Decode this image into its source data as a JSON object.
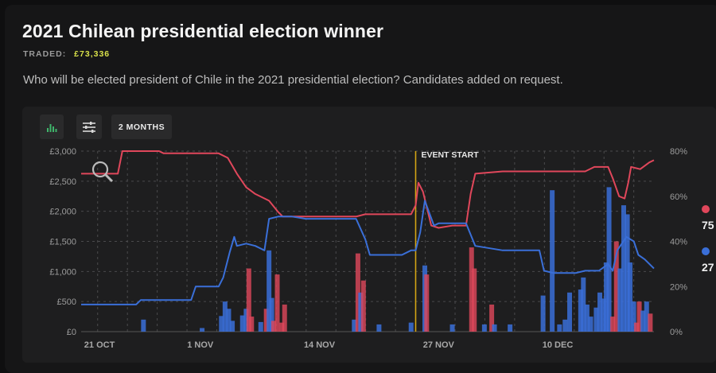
{
  "header": {
    "title": "2021 Chilean presidential election winner",
    "traded_label": "TRADED:",
    "traded_amount": "£73,336",
    "description": "Who will be elected president of Chile in the 2021 presidential election? Candidates added on request."
  },
  "toolbar": {
    "chart_icon": "bar-chart-icon",
    "filter_icon": "sliders-icon",
    "range_label": "2 MONTHS"
  },
  "legend": [
    {
      "color": "#e0475b",
      "value": "75"
    },
    {
      "color": "#3a6fd8",
      "value": "27"
    }
  ],
  "colors": {
    "red": "#e0475b",
    "blue": "#3a6fd8",
    "event": "#d4a514",
    "grid": "#4a4a4c"
  },
  "chart_data": {
    "type": "line",
    "title": "",
    "event_label": "EVENT START",
    "event_x": 34.5,
    "x_ticks": [
      {
        "x": 0,
        "label": "21 OCT"
      },
      {
        "x": 11,
        "label": "1 NOV"
      },
      {
        "x": 24,
        "label": "14 NOV"
      },
      {
        "x": 37,
        "label": "27 NOV"
      },
      {
        "x": 50,
        "label": "10 DEC"
      }
    ],
    "xlim": [
      -2,
      60.5
    ],
    "y_left": {
      "ticks": [
        "£0",
        "£500",
        "£1,000",
        "£1,500",
        "£2,000",
        "£2,500",
        "£3,000"
      ],
      "lim": [
        0,
        3000
      ]
    },
    "y_right": {
      "ticks": [
        "0%",
        "20%",
        "40%",
        "60%",
        "80%"
      ],
      "lim": [
        0,
        80
      ]
    },
    "series": [
      {
        "color": "red",
        "points": [
          [
            -2,
            70
          ],
          [
            2,
            70
          ],
          [
            2.5,
            80
          ],
          [
            6.5,
            80
          ],
          [
            7,
            79
          ],
          [
            13,
            79
          ],
          [
            14,
            77
          ],
          [
            15,
            70
          ],
          [
            16,
            64
          ],
          [
            17,
            61
          ],
          [
            18.5,
            58
          ],
          [
            19.5,
            53
          ],
          [
            20,
            51
          ],
          [
            28,
            51
          ],
          [
            29,
            52
          ],
          [
            34,
            52
          ],
          [
            34.5,
            56
          ],
          [
            34.8,
            66
          ],
          [
            35.3,
            62
          ],
          [
            36.2,
            47
          ],
          [
            37,
            46
          ],
          [
            38.5,
            47
          ],
          [
            40,
            47
          ],
          [
            40.5,
            61
          ],
          [
            41,
            70
          ],
          [
            44,
            71
          ],
          [
            52,
            71
          ],
          [
            53,
            71
          ],
          [
            54,
            73
          ],
          [
            55.5,
            73
          ],
          [
            56,
            68
          ],
          [
            56.7,
            60
          ],
          [
            57.3,
            59
          ],
          [
            57.7,
            66
          ],
          [
            58,
            73
          ],
          [
            59,
            72
          ],
          [
            60,
            75
          ],
          [
            60.5,
            76
          ]
        ]
      },
      {
        "color": "blue",
        "points": [
          [
            -2,
            12
          ],
          [
            4,
            12
          ],
          [
            4.5,
            14
          ],
          [
            10,
            14
          ],
          [
            10.5,
            20
          ],
          [
            13,
            20
          ],
          [
            13.5,
            24
          ],
          [
            14.2,
            35
          ],
          [
            14.7,
            42
          ],
          [
            15,
            38
          ],
          [
            16,
            39
          ],
          [
            17,
            38
          ],
          [
            18,
            36
          ],
          [
            18.5,
            50
          ],
          [
            19.5,
            51
          ],
          [
            21,
            51
          ],
          [
            22.5,
            50
          ],
          [
            28,
            50
          ],
          [
            29,
            41
          ],
          [
            29.5,
            34
          ],
          [
            33,
            34
          ],
          [
            34,
            36
          ],
          [
            34.5,
            36
          ],
          [
            35,
            44
          ],
          [
            35.5,
            58
          ],
          [
            36.5,
            47
          ],
          [
            37,
            48
          ],
          [
            40,
            48
          ],
          [
            41,
            38
          ],
          [
            44,
            36
          ],
          [
            48,
            36
          ],
          [
            48.5,
            27
          ],
          [
            49.5,
            26
          ],
          [
            52,
            26
          ],
          [
            53,
            27
          ],
          [
            54.5,
            27
          ],
          [
            55.5,
            30
          ],
          [
            56,
            27
          ],
          [
            56.5,
            36
          ],
          [
            57.5,
            42
          ],
          [
            58.3,
            40
          ],
          [
            58.8,
            34
          ],
          [
            59.5,
            32
          ],
          [
            60.5,
            28
          ]
        ]
      }
    ],
    "volume_bars": [
      {
        "x": 4.8,
        "v": 200,
        "c": "blue"
      },
      {
        "x": 11.2,
        "v": 60,
        "c": "blue"
      },
      {
        "x": 13.3,
        "v": 260,
        "c": "blue"
      },
      {
        "x": 13.7,
        "v": 500,
        "c": "blue"
      },
      {
        "x": 14.1,
        "v": 380,
        "c": "blue"
      },
      {
        "x": 14.5,
        "v": 180,
        "c": "blue"
      },
      {
        "x": 15.6,
        "v": 270,
        "c": "blue"
      },
      {
        "x": 16,
        "v": 380,
        "c": "blue"
      },
      {
        "x": 16.3,
        "v": 1050,
        "c": "red"
      },
      {
        "x": 16.6,
        "v": 250,
        "c": "red"
      },
      {
        "x": 17.6,
        "v": 160,
        "c": "blue"
      },
      {
        "x": 18.2,
        "v": 380,
        "c": "red"
      },
      {
        "x": 18.5,
        "v": 1350,
        "c": "blue"
      },
      {
        "x": 18.8,
        "v": 560,
        "c": "blue"
      },
      {
        "x": 19,
        "v": 180,
        "c": "red"
      },
      {
        "x": 19.4,
        "v": 950,
        "c": "red"
      },
      {
        "x": 19.9,
        "v": 150,
        "c": "red"
      },
      {
        "x": 20.2,
        "v": 450,
        "c": "red"
      },
      {
        "x": 27.8,
        "v": 200,
        "c": "blue"
      },
      {
        "x": 28.2,
        "v": 1300,
        "c": "red"
      },
      {
        "x": 28.5,
        "v": 650,
        "c": "blue"
      },
      {
        "x": 28.8,
        "v": 850,
        "c": "red"
      },
      {
        "x": 30.5,
        "v": 120,
        "c": "blue"
      },
      {
        "x": 34,
        "v": 150,
        "c": "blue"
      },
      {
        "x": 35.5,
        "v": 1100,
        "c": "blue"
      },
      {
        "x": 35.7,
        "v": 950,
        "c": "red"
      },
      {
        "x": 38.5,
        "v": 120,
        "c": "blue"
      },
      {
        "x": 40.6,
        "v": 1400,
        "c": "red"
      },
      {
        "x": 40.9,
        "v": 1050,
        "c": "red"
      },
      {
        "x": 42,
        "v": 120,
        "c": "blue"
      },
      {
        "x": 42.8,
        "v": 450,
        "c": "red"
      },
      {
        "x": 43.1,
        "v": 120,
        "c": "blue"
      },
      {
        "x": 44.8,
        "v": 120,
        "c": "blue"
      },
      {
        "x": 48.4,
        "v": 600,
        "c": "blue"
      },
      {
        "x": 49.4,
        "v": 2350,
        "c": "blue"
      },
      {
        "x": 50.2,
        "v": 120,
        "c": "blue"
      },
      {
        "x": 50.8,
        "v": 200,
        "c": "blue"
      },
      {
        "x": 51.3,
        "v": 650,
        "c": "blue"
      },
      {
        "x": 52.5,
        "v": 700,
        "c": "blue"
      },
      {
        "x": 52.8,
        "v": 900,
        "c": "blue"
      },
      {
        "x": 53.2,
        "v": 450,
        "c": "blue"
      },
      {
        "x": 53.6,
        "v": 250,
        "c": "blue"
      },
      {
        "x": 54.2,
        "v": 400,
        "c": "blue"
      },
      {
        "x": 54.6,
        "v": 650,
        "c": "blue"
      },
      {
        "x": 55.0,
        "v": 550,
        "c": "blue"
      },
      {
        "x": 55.3,
        "v": 1150,
        "c": "blue"
      },
      {
        "x": 55.6,
        "v": 2400,
        "c": "blue"
      },
      {
        "x": 56.0,
        "v": 250,
        "c": "red"
      },
      {
        "x": 56.4,
        "v": 1500,
        "c": "red"
      },
      {
        "x": 56.8,
        "v": 1050,
        "c": "blue"
      },
      {
        "x": 57.2,
        "v": 2100,
        "c": "blue"
      },
      {
        "x": 57.6,
        "v": 1950,
        "c": "blue"
      },
      {
        "x": 57.9,
        "v": 1150,
        "c": "blue"
      },
      {
        "x": 58.3,
        "v": 500,
        "c": "blue"
      },
      {
        "x": 58.6,
        "v": 150,
        "c": "red"
      },
      {
        "x": 58.9,
        "v": 500,
        "c": "red"
      },
      {
        "x": 59.3,
        "v": 350,
        "c": "blue"
      },
      {
        "x": 59.7,
        "v": 500,
        "c": "blue"
      },
      {
        "x": 60.1,
        "v": 300,
        "c": "red"
      }
    ]
  }
}
